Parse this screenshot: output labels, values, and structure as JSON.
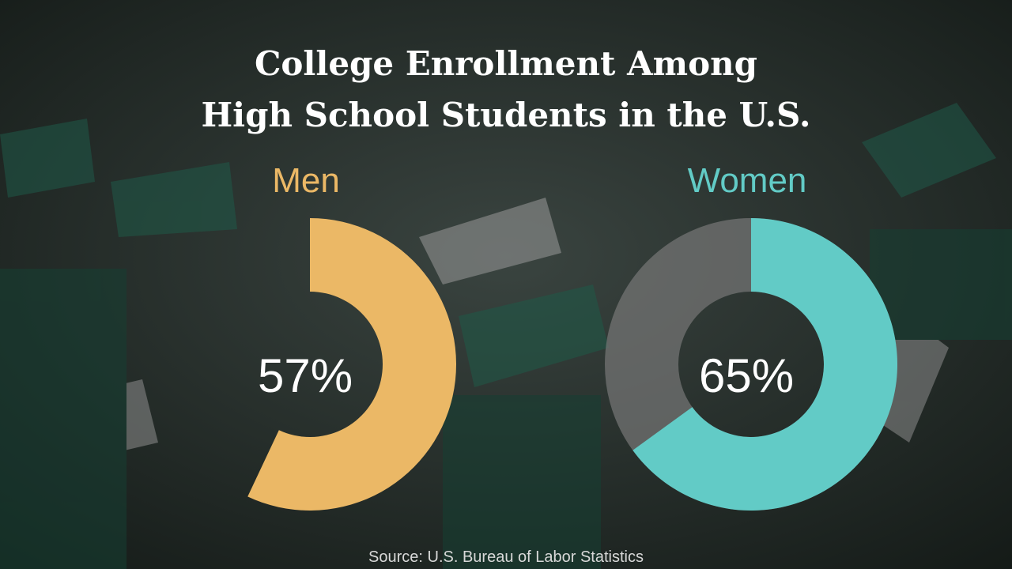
{
  "title": [
    "College Enrollment Among",
    "High School Students in the U.S."
  ],
  "source": "Source: U.S. Bureau of Labor Statistics",
  "chart_data": [
    {
      "type": "donut",
      "title": "Men",
      "value": 57,
      "value_label": "57%",
      "color": "#ebb866",
      "track": false
    },
    {
      "type": "donut",
      "title": "Women",
      "value": 65,
      "value_label": "65%",
      "color": "#62cbc6",
      "track": true
    }
  ]
}
